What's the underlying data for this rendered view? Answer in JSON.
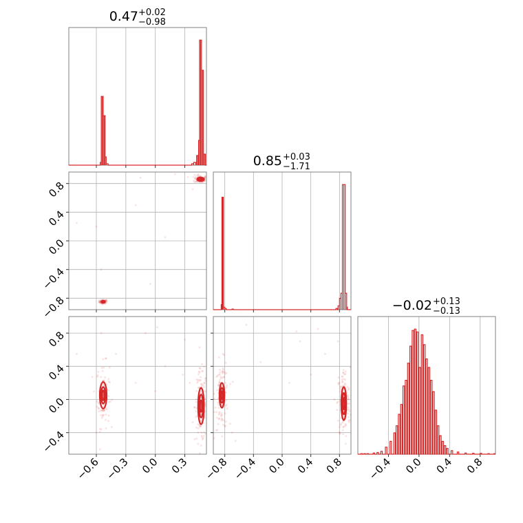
{
  "chart_data": {
    "type": "corner",
    "accent_color": "#d62728",
    "parameters": [
      {
        "title": {
          "median": "0.47",
          "upper": "+0.02",
          "lower": "−0.98"
        }
      },
      {
        "title": {
          "median": "0.85",
          "upper": "+0.03",
          "lower": "−1.71"
        }
      },
      {
        "title": {
          "median": "−0.02",
          "upper": "+0.13",
          "lower": "−0.13"
        }
      }
    ],
    "axes": {
      "p1": {
        "range": [
          -0.88,
          0.52
        ],
        "ticks": [
          -0.6,
          -0.3,
          0.0,
          0.3
        ],
        "tick_labels": [
          "−0.6",
          "−0.3",
          "0.0",
          "0.3"
        ]
      },
      "p2": {
        "range": [
          -0.96,
          0.96
        ],
        "ticks": [
          -0.8,
          -0.4,
          0.0,
          0.4,
          0.8
        ],
        "tick_labels": [
          "−0.8",
          "−0.4",
          "0.0",
          "0.4",
          "0.8"
        ]
      },
      "p3": {
        "range": [
          -0.66,
          1.0
        ],
        "ticks": [
          -0.4,
          0.0,
          0.4,
          0.8
        ],
        "tick_labels": [
          "−0.4",
          "0.0",
          "0.4",
          "0.8"
        ]
      },
      "p3_diag": {
        "range": [
          -0.8,
          1.0
        ],
        "ticks": [
          -0.4,
          0.0,
          0.4,
          0.8
        ],
        "tick_labels": [
          "−0.4",
          "0.0",
          "0.4",
          "0.8"
        ]
      }
    },
    "histograms": [
      {
        "param": "p1",
        "bins": [
          [
            -0.56,
            0.02
          ],
          [
            -0.55,
            0.5
          ],
          [
            -0.54,
            0.5
          ],
          [
            -0.53,
            0.36
          ],
          [
            -0.52,
            0.36
          ],
          [
            -0.51,
            0.06
          ],
          [
            -0.5,
            0.01
          ],
          [
            0.37,
            0.01
          ],
          [
            0.39,
            0.02
          ],
          [
            0.41,
            0.02
          ],
          [
            0.42,
            0.07
          ],
          [
            0.43,
            0.07
          ],
          [
            0.44,
            0.18
          ],
          [
            0.45,
            0.91
          ],
          [
            0.46,
            0.91
          ],
          [
            0.47,
            0.69
          ],
          [
            0.48,
            0.69
          ],
          [
            0.49,
            0.08
          ],
          [
            0.5,
            0.08
          ]
        ]
      },
      {
        "param": "p2",
        "bins": [
          [
            -0.85,
            0.04
          ],
          [
            -0.84,
            0.89
          ],
          [
            -0.83,
            0.89
          ],
          [
            -0.82,
            0.02
          ],
          [
            -0.8,
            0.01
          ],
          [
            -0.7,
            0.005
          ],
          [
            0.75,
            0.01
          ],
          [
            0.78,
            0.03
          ],
          [
            0.8,
            0.09
          ],
          [
            0.82,
            0.13
          ],
          [
            0.84,
            0.99
          ],
          [
            0.86,
            0.99
          ],
          [
            0.88,
            0.13
          ],
          [
            0.9,
            0.02
          ]
        ]
      },
      {
        "param": "p3_diag",
        "bins": [
          [
            -0.76,
            0.004
          ],
          [
            -0.72,
            0.004
          ],
          [
            -0.68,
            0.004
          ],
          [
            -0.6,
            0.008
          ],
          [
            -0.55,
            0.012
          ],
          [
            -0.5,
            0.02
          ],
          [
            -0.44,
            0.05
          ],
          [
            -0.38,
            0.09
          ],
          [
            -0.33,
            0.15
          ],
          [
            -0.3,
            0.2
          ],
          [
            -0.27,
            0.28
          ],
          [
            -0.24,
            0.35
          ],
          [
            -0.21,
            0.48
          ],
          [
            -0.18,
            0.52
          ],
          [
            -0.15,
            0.64
          ],
          [
            -0.12,
            0.76
          ],
          [
            -0.09,
            0.87
          ],
          [
            -0.06,
            0.88
          ],
          [
            -0.03,
            0.86
          ],
          [
            0.0,
            0.61
          ],
          [
            0.03,
            0.84
          ],
          [
            0.06,
            0.77
          ],
          [
            0.09,
            0.67
          ],
          [
            0.12,
            0.61
          ],
          [
            0.15,
            0.52
          ],
          [
            0.18,
            0.44
          ],
          [
            0.21,
            0.31
          ],
          [
            0.24,
            0.2
          ],
          [
            0.27,
            0.13
          ],
          [
            0.3,
            0.09
          ],
          [
            0.33,
            0.06
          ],
          [
            0.36,
            0.04
          ],
          [
            0.42,
            0.025
          ],
          [
            0.5,
            0.015
          ],
          [
            0.6,
            0.008
          ],
          [
            0.7,
            0.006
          ],
          [
            0.8,
            0.006
          ],
          [
            0.9,
            0.004
          ],
          [
            0.98,
            0.004
          ]
        ]
      }
    ],
    "scatters": [
      {
        "x": "p1",
        "y": "p2",
        "clusters": [
          {
            "cx": -0.53,
            "cy": -0.85,
            "sx": 0.013,
            "sy": 0.012,
            "n": 70,
            "contours": [
              [
                0.018,
                0.016
              ],
              [
                0.009,
                0.008
              ]
            ]
          },
          {
            "cx": 0.46,
            "cy": 0.86,
            "sx": 0.02,
            "sy": 0.022,
            "n": 100,
            "contours": [
              [
                0.034,
                0.025
              ],
              [
                0.02,
                0.014
              ]
            ]
          }
        ],
        "outliers": [
          [
            -0.8,
            0.25
          ],
          [
            -0.6,
            0.2
          ],
          [
            -0.2,
            0.5
          ],
          [
            0.1,
            0.05
          ],
          [
            -0.55,
            -0.4
          ],
          [
            -0.05,
            -0.6
          ],
          [
            0.38,
            0.72
          ],
          [
            0.2,
            0.93
          ],
          [
            -0.15,
            0.88
          ],
          [
            0.33,
            0.89
          ],
          [
            0.4,
            0.92
          ]
        ]
      },
      {
        "x": "p1",
        "y": "p3",
        "clusters": [
          {
            "cx": -0.53,
            "cy": 0.05,
            "sx": 0.02,
            "sy": 0.16,
            "n": 110,
            "contours": [
              [
                0.035,
                0.16
              ],
              [
                0.022,
                0.1
              ],
              [
                0.012,
                0.06
              ]
            ]
          },
          {
            "cx": 0.465,
            "cy": -0.08,
            "sx": 0.02,
            "sy": 0.18,
            "n": 150,
            "contours": [
              [
                0.03,
                0.22
              ],
              [
                0.02,
                0.14
              ],
              [
                0.011,
                0.07
              ]
            ]
          }
        ],
        "outliers": [
          [
            -0.8,
            0.55
          ],
          [
            -0.55,
            0.8
          ],
          [
            -0.2,
            0.2
          ],
          [
            -0.4,
            0.55
          ],
          [
            0.0,
            0.1
          ],
          [
            0.1,
            0.4
          ],
          [
            0.3,
            0.72
          ],
          [
            0.28,
            0.3
          ],
          [
            -0.1,
            0.8
          ],
          [
            0.02,
            0.87
          ],
          [
            0.35,
            0.2
          ],
          [
            -0.6,
            -0.4
          ]
        ]
      },
      {
        "x": "p2",
        "y": "p3",
        "clusters": [
          {
            "cx": -0.84,
            "cy": 0.05,
            "sx": 0.03,
            "sy": 0.17,
            "n": 110,
            "contours": [
              [
                0.035,
                0.15
              ],
              [
                0.022,
                0.09
              ],
              [
                0.012,
                0.05
              ]
            ]
          },
          {
            "cx": 0.86,
            "cy": -0.05,
            "sx": 0.028,
            "sy": 0.18,
            "n": 150,
            "contours": [
              [
                0.035,
                0.2
              ],
              [
                0.022,
                0.13
              ],
              [
                0.012,
                0.07
              ]
            ]
          }
        ],
        "outliers": [
          [
            -0.7,
            -0.4
          ],
          [
            -0.65,
            -0.5
          ],
          [
            0.2,
            0.82
          ],
          [
            0.5,
            0.85
          ],
          [
            0.4,
            0.3
          ],
          [
            -0.3,
            0.45
          ],
          [
            0.25,
            0.7
          ],
          [
            0.6,
            0.55
          ],
          [
            0.78,
            0.7
          ],
          [
            -0.5,
            0.9
          ],
          [
            0.1,
            0.2
          ]
        ]
      }
    ]
  }
}
